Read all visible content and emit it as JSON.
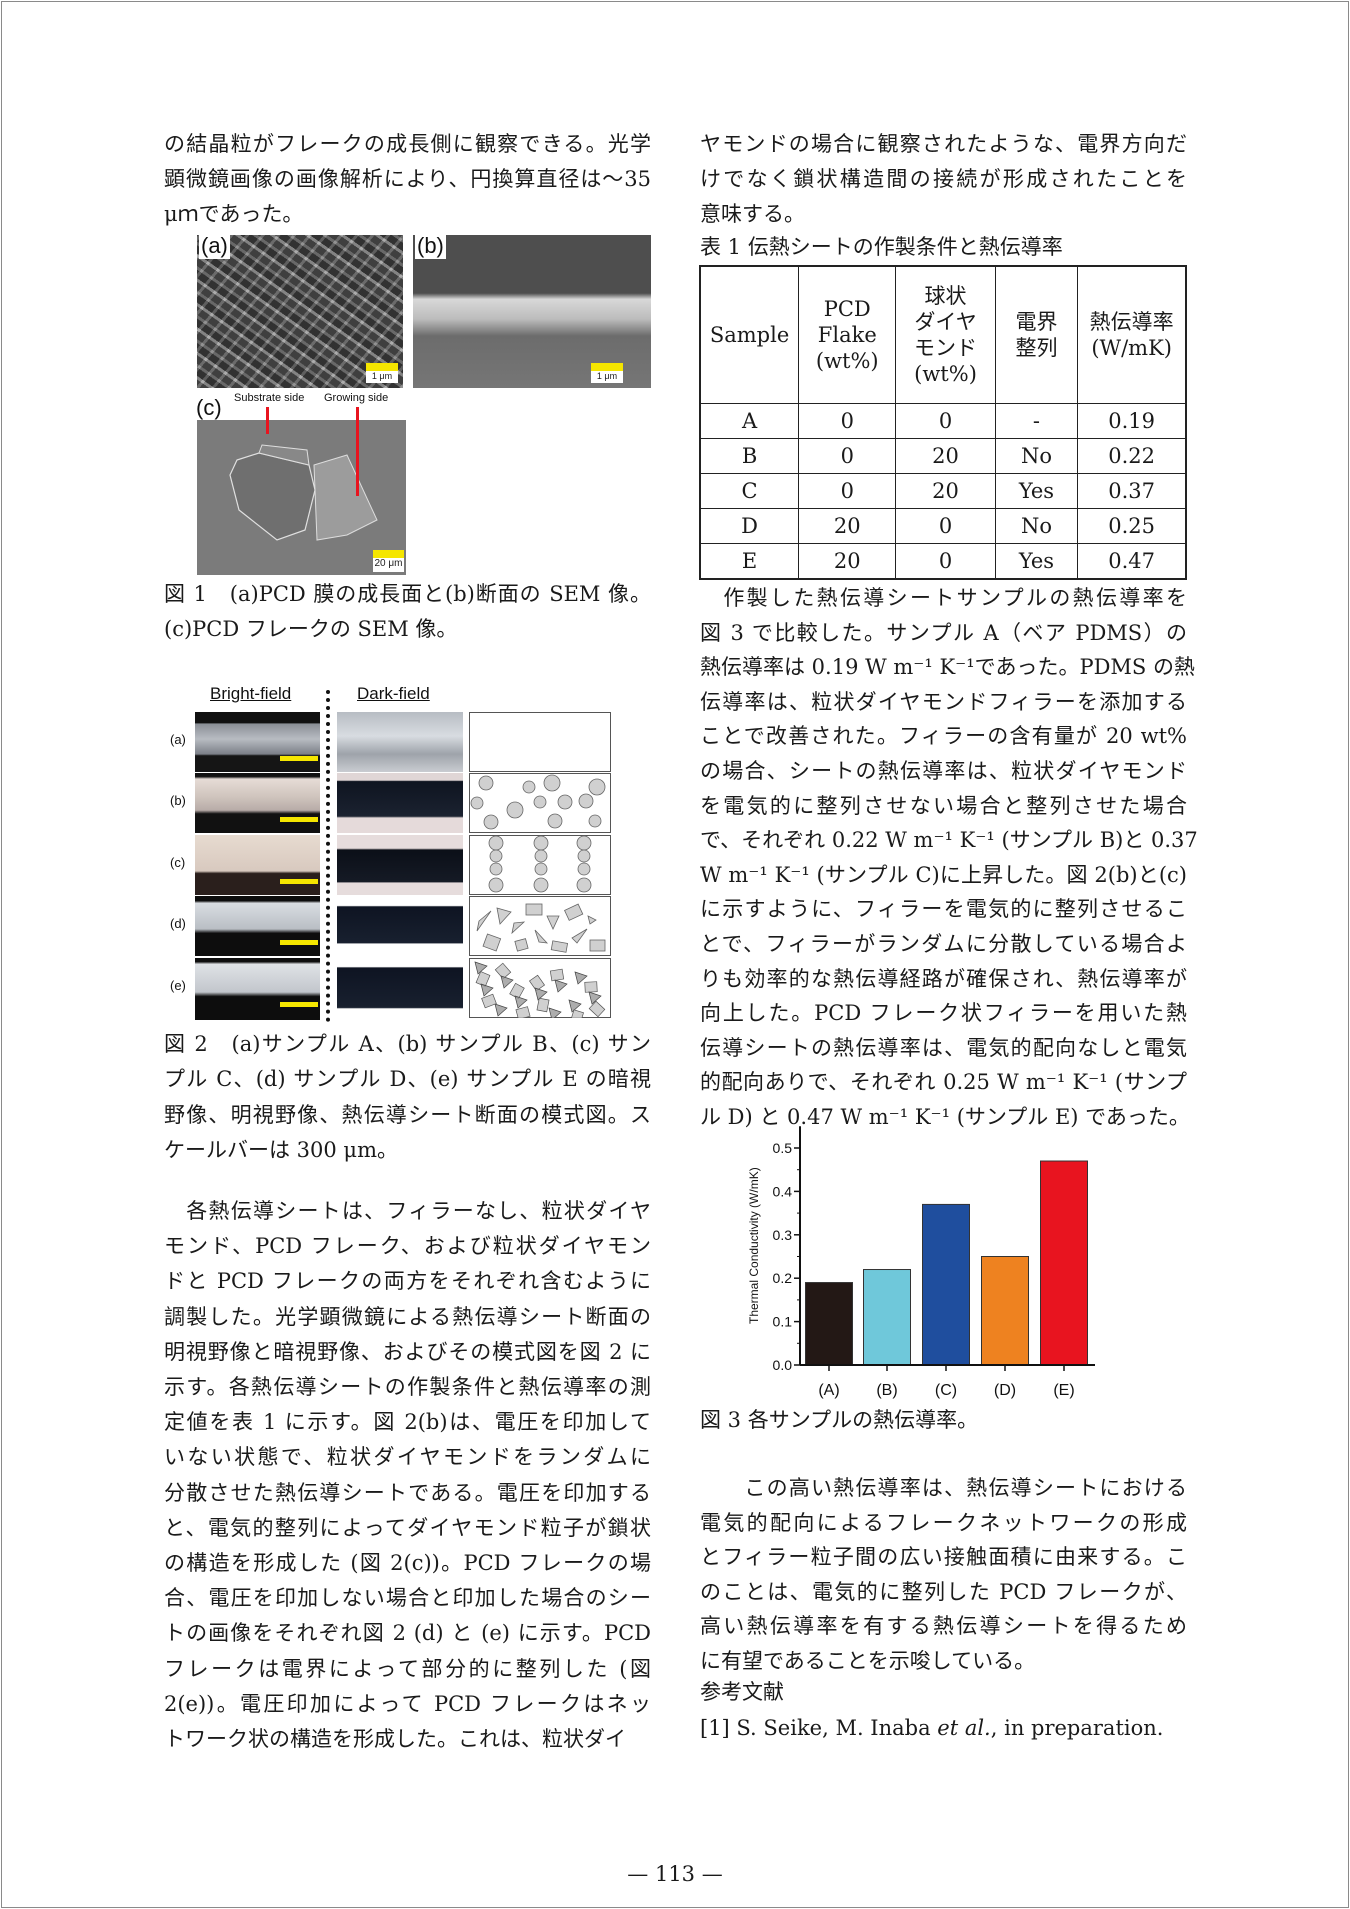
{
  "left_column": {
    "intro_lines": [
      "の結晶粒がフレークの成長側に観察できる。光学",
      "顕微鏡画像の画像解析により、円換算直径は～35",
      "μｍであった。"
    ],
    "figure1": {
      "label_a": "(a)",
      "label_b": "(b)",
      "label_c": "(c)",
      "substrate_side": "Substrate side",
      "growing_side": "Growing side",
      "scale_a": "1 μm",
      "scale_b": "1 μm",
      "scale_c": "20 μm",
      "caption_lines": [
        "図 1　(a)PCD 膜の成長面と(b)断面の SEM 像。",
        "(c)PCD フレークの SEM 像。"
      ]
    },
    "figure2": {
      "headers": [
        "Bright-field",
        "Dark-field"
      ],
      "row_labels": [
        "(a)",
        "(b)",
        "(c)",
        "(d)",
        "(e)"
      ],
      "caption_lines": [
        "図 2　(a)サンプル A、(b) サンプル B、(c) サン",
        "プル C、(d) サンプル D、(e) サンプル E の暗視",
        "野像、明視野像、熱伝導シート断面の模式図。ス",
        "ケールバーは 300 μm。"
      ]
    },
    "body_lines": [
      "　各熱伝導シートは、フィラーなし、粒状ダイヤ",
      "モンド、PCD フレーク、および粒状ダイヤモン",
      "ドと PCD フレークの両方をそれぞれ含むように",
      "調製した。光学顕微鏡による熱伝導シート断面の",
      "明視野像と暗視野像、およびその模式図を図 2 に",
      "示す。各熱伝導シートの作製条件と熱伝導率の測",
      "定値を表 1 に示す。図 2(b)は、電圧を印加して",
      "いない状態で、粒状ダイヤモンドをランダムに",
      "分散させた熱伝導シートである。電圧を印加する",
      "と、電気的整列によってダイヤモンド粒子が鎖状",
      "の構造を形成した (図 2(c))。PCD フレークの場",
      "合、電圧を印加しない場合と印加した場合のシー",
      "トの画像をそれぞれ図 2 (d) と (e) に示す。PCD",
      "フレークは電界によって部分的に整列した (図",
      "2(e))。電圧印加によって PCD フレークはネッ",
      "トワーク状の構造を形成した。これは、粒状ダイ"
    ]
  },
  "right_column": {
    "intro_lines": [
      "ヤモンドの場合に観察されたような、電界方向だ",
      "けでなく鎖状構造間の接続が形成されたことを",
      "意味する。"
    ],
    "table": {
      "title": "表 1 伝熱シートの作製条件と熱伝導率",
      "headers": [
        [
          "Sample"
        ],
        [
          "PCD",
          "Flake",
          "(wt%)"
        ],
        [
          "球状",
          "ダイヤ",
          "モンド",
          "(wt%)"
        ],
        [
          "電界",
          "整列"
        ],
        [
          "熱伝導率",
          "(W/mK)"
        ]
      ],
      "rows": [
        [
          "A",
          "0",
          "0",
          "-",
          "0.19"
        ],
        [
          "B",
          "0",
          "20",
          "No",
          "0.22"
        ],
        [
          "C",
          "0",
          "20",
          "Yes",
          "0.37"
        ],
        [
          "D",
          "20",
          "0",
          "No",
          "0.25"
        ],
        [
          "E",
          "20",
          "0",
          "Yes",
          "0.47"
        ]
      ]
    },
    "body_lines": [
      "　作製した熱伝導シートサンプルの熱伝導率を",
      "図 3 で比較した。サンプル A（ベア PDMS）の",
      "熱伝導率は 0.19 W m⁻¹ K⁻¹であった。PDMS の熱",
      "伝導率は、粒状ダイヤモンドフィラーを添加する",
      "ことで改善された。フィラーの含有量が 20 wt%",
      "の場合、シートの熱伝導率は、粒状ダイヤモンド",
      "を電気的に整列させない場合と整列させた場合",
      "で、それぞれ 0.22 W m⁻¹ K⁻¹ (サンプル B)と 0.37",
      "W m⁻¹ K⁻¹ (サンプル C)に上昇した。図 2(b)と(c)",
      "に示すように、フィラーを電気的に整列させるこ",
      "とで、フィラーがランダムに分散している場合よ",
      "りも効率的な熱伝導経路が確保され、熱伝導率が",
      "向上した。PCD フレーク状フィラーを用いた熱",
      "伝導シートの熱伝導率は、電気的配向なしと電気",
      "的配向ありで、それぞれ 0.25 W m⁻¹ K⁻¹ (サンプ",
      "ル D) と 0.47 W m⁻¹ K⁻¹ (サンプル E) であった。"
    ],
    "figure3_caption": "図 3 各サンプルの熱伝導率。",
    "conclusion_lines": [
      "　　この高い熱伝導率は、熱伝導シートにおける",
      "電気的配向によるフレークネットワークの形成",
      "とフィラー粒子間の広い接触面積に由来する。こ",
      "のことは、電気的に整列した PCD フレークが、",
      "高い熱伝導率を有する熱伝導シートを得るため",
      "に有望であることを示唆している。"
    ],
    "references_heading": "参考文献",
    "reference_1": {
      "prefix": "[1] S. Seike, M. Inaba ",
      "etal": "et al.",
      "suffix": ", in preparation."
    }
  },
  "chart_data": {
    "type": "bar",
    "title": "",
    "xlabel": "",
    "ylabel": "Thermal Conductivity (W/mK)",
    "categories": [
      "(A)",
      "(B)",
      "(C)",
      "(D)",
      "(E)"
    ],
    "values": [
      0.19,
      0.22,
      0.37,
      0.25,
      0.47
    ],
    "colors": [
      "#231815",
      "#6fc8da",
      "#1f4e9e",
      "#ee8220",
      "#e8141f"
    ],
    "ylim": [
      0,
      0.55
    ],
    "yticks": [
      "0.0",
      "0.1",
      "0.2",
      "0.3",
      "0.4",
      "0.5"
    ],
    "grid": false,
    "legend": "none"
  },
  "page_number": "— 113 —"
}
